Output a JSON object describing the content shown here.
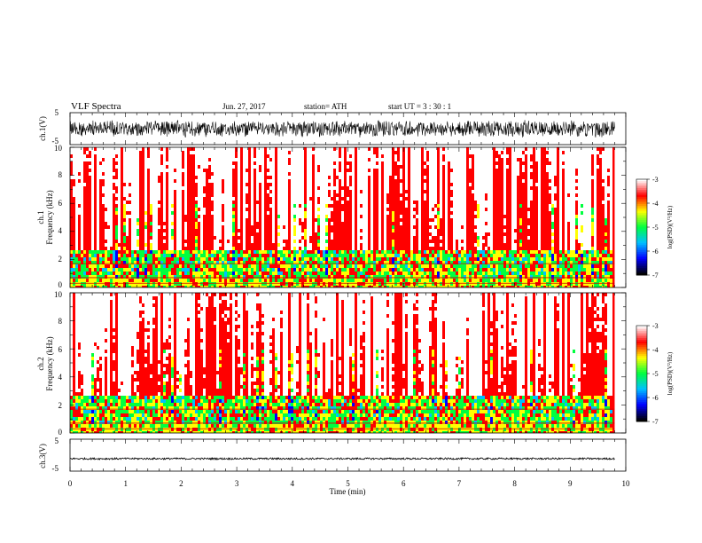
{
  "header": {
    "title": "VLF  Spectra",
    "date": "Jun. 27, 2017",
    "station": "station= ATH",
    "start_ut": "start  UT  =    3  : 30 : 1"
  },
  "chart_data": [
    {
      "type": "line",
      "ylabel": "ch.1(V)",
      "ylim": [
        -5,
        5
      ],
      "yticks": [
        "5",
        "-5"
      ],
      "xlim": [
        0,
        10
      ],
      "signal": "noisy waveform, amplitude about ±2.5 V around 0"
    },
    {
      "type": "heatmap",
      "ylabel": "ch.1",
      "ylabel2": "Frequency  (kHz)",
      "ylim": [
        0,
        10
      ],
      "yticks": [
        "0",
        "2",
        "4",
        "6",
        "8",
        "10"
      ],
      "xlim": [
        0,
        10
      ],
      "data_end_min": 9.8,
      "colorbar": {
        "label": "log(PSD)(V²/Hz)",
        "range": [
          -7,
          -3
        ],
        "ticks": [
          "-3",
          "-4",
          "-5",
          "-6",
          "-7"
        ],
        "colors": [
          "#000000",
          "#0000ff",
          "#00c0ff",
          "#00ff40",
          "#ffff00",
          "#ff0000",
          "#ffffff"
        ]
      }
    },
    {
      "type": "heatmap",
      "ylabel": "ch.2",
      "ylabel2": "Frequency  (kHz)",
      "ylim": [
        0,
        10
      ],
      "yticks": [
        "0",
        "2",
        "4",
        "6",
        "8",
        "10"
      ],
      "xlim": [
        0,
        10
      ],
      "data_end_min": 9.8,
      "colorbar": {
        "label": "log(PSD)(V²/Hz)",
        "range": [
          -7,
          -3
        ],
        "ticks": [
          "-3",
          "-4",
          "-5",
          "-6",
          "-7"
        ],
        "colors": [
          "#000000",
          "#0000ff",
          "#00c0ff",
          "#00ff40",
          "#ffff00",
          "#ff0000",
          "#ffffff"
        ]
      }
    },
    {
      "type": "line",
      "ylabel": "ch.3(V)",
      "ylim": [
        -5,
        5
      ],
      "yticks": [
        "5",
        "-5"
      ],
      "xlim": [
        0,
        10
      ],
      "xlabel": "Time  (min)",
      "xticks": [
        "0",
        "1",
        "2",
        "3",
        "4",
        "5",
        "6",
        "7",
        "8",
        "9",
        "10"
      ],
      "signal": "near-constant trace at about -1 V"
    }
  ]
}
